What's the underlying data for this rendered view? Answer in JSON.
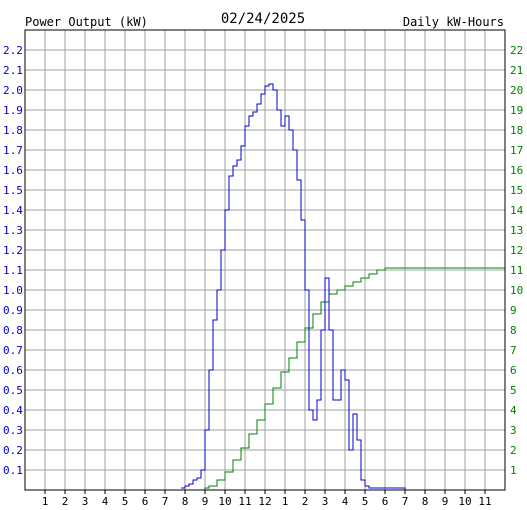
{
  "chart_data": {
    "type": "line",
    "title": "02/24/2025",
    "left_axis_label": "Power Output (kW)",
    "right_axis_label": "Daily kW-Hours",
    "colors": {
      "power": "#0000cc",
      "energy": "#008000",
      "text": "#000000",
      "grid": "#a0a0a0"
    },
    "grid": true,
    "x_range": [
      0,
      24
    ],
    "x_tick_labels": [
      "1",
      "2",
      "3",
      "4",
      "5",
      "6",
      "7",
      "8",
      "9",
      "10",
      "11",
      "12",
      "1",
      "2",
      "3",
      "4",
      "5",
      "6",
      "7",
      "8",
      "9",
      "10",
      "11"
    ],
    "left_ylim": [
      0,
      2.3
    ],
    "left_tick_labels": [
      "0.1",
      "0.2",
      "0.3",
      "0.4",
      "0.5",
      "0.6",
      "0.7",
      "0.8",
      "0.9",
      "1.0",
      "1.1",
      "1.2",
      "1.3",
      "1.4",
      "1.5",
      "1.6",
      "1.7",
      "1.8",
      "1.9",
      "2.0",
      "2.1",
      "2.2"
    ],
    "right_ylim": [
      0,
      23
    ],
    "right_tick_labels": [
      "1",
      "2",
      "3",
      "4",
      "5",
      "6",
      "7",
      "8",
      "9",
      "10",
      "11",
      "12",
      "13",
      "14",
      "15",
      "16",
      "17",
      "18",
      "19",
      "20",
      "21",
      "22"
    ],
    "series": [
      {
        "name": "Power Output (kW)",
        "axis": "left",
        "x": [
          7.8,
          8.0,
          8.2,
          8.4,
          8.6,
          8.8,
          9.0,
          9.2,
          9.4,
          9.6,
          9.8,
          10.0,
          10.2,
          10.4,
          10.6,
          10.8,
          11.0,
          11.2,
          11.4,
          11.6,
          11.8,
          12.0,
          12.2,
          12.4,
          12.6,
          12.8,
          13.0,
          13.2,
          13.4,
          13.6,
          13.8,
          14.0,
          14.2,
          14.4,
          14.6,
          14.8,
          15.0,
          15.2,
          15.4,
          15.6,
          15.8,
          16.0,
          16.2,
          16.4,
          16.6,
          16.8,
          17.0,
          17.2,
          17.4,
          17.6,
          17.8,
          18.0,
          18.2,
          18.4,
          18.6,
          18.8,
          19.0,
          19.2,
          19.4
        ],
        "y": [
          0.01,
          0.02,
          0.03,
          0.05,
          0.06,
          0.1,
          0.3,
          0.6,
          0.85,
          1.0,
          1.2,
          1.4,
          1.57,
          1.62,
          1.65,
          1.72,
          1.82,
          1.87,
          1.89,
          1.93,
          1.98,
          2.02,
          2.03,
          2.0,
          1.9,
          1.82,
          1.87,
          1.8,
          1.7,
          1.55,
          1.35,
          1.0,
          0.4,
          0.35,
          0.45,
          0.8,
          1.06,
          0.8,
          0.45,
          0.45,
          0.6,
          0.55,
          0.2,
          0.38,
          0.25,
          0.05,
          0.02,
          0.01,
          0.01,
          0.01,
          0.01,
          0.01,
          0.01,
          0.01,
          0.01,
          0.01,
          0.0,
          0.0,
          0.0
        ]
      },
      {
        "name": "Daily kW-Hours",
        "axis": "right",
        "x": [
          7.8,
          8.4,
          9.0,
          9.2,
          9.6,
          10.0,
          10.4,
          10.8,
          11.2,
          11.6,
          12.0,
          12.4,
          12.8,
          13.2,
          13.6,
          14.0,
          14.4,
          14.8,
          15.2,
          15.6,
          16.0,
          16.4,
          16.8,
          17.2,
          17.6,
          18.0,
          18.5,
          19.0,
          20.0,
          21.0,
          22.0,
          23.0,
          24.0
        ],
        "y": [
          0.0,
          0.0,
          0.1,
          0.2,
          0.5,
          0.9,
          1.5,
          2.1,
          2.8,
          3.5,
          4.3,
          5.1,
          5.9,
          6.6,
          7.4,
          8.1,
          8.8,
          9.4,
          9.8,
          10.0,
          10.2,
          10.4,
          10.6,
          10.8,
          11.0,
          11.1,
          11.1,
          11.1,
          11.1,
          11.1,
          11.1,
          11.1,
          11.1
        ]
      }
    ]
  }
}
